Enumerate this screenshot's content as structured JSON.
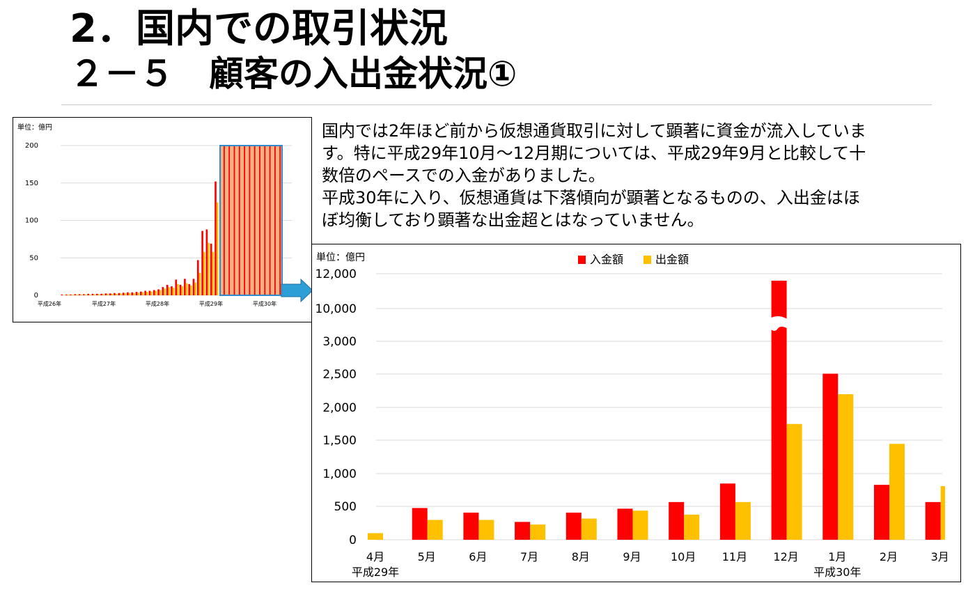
{
  "page": {
    "title_main": "2．国内での取引状況",
    "title_sub": "２－５　顧客の入出金状況①",
    "description": "国内では2年ほど前から仮想通貨取引に対して顕著に資金が流入していま\nす。特に平成29年10月～12月期については、平成29年9月と比較して十\n数倍のペースでの入金がありました。\n平成30年に入り、仮想通貨は下落傾向が顕著となるものの、入出金はほ\nぼ均衡しており顕著な出金超とはなっていません。"
  },
  "colors": {
    "deposit": "#ff0000",
    "withdrawal": "#ffc000",
    "highlight_border": "#2f8dcf",
    "highlight_fill": "#f4b183",
    "arrow": "#2e9fd6",
    "grid": "#d9d9d9"
  },
  "chart_data": [
    {
      "type": "bar",
      "unit_label": "単位：億円",
      "ylim": [
        0,
        200
      ],
      "yticks": [
        0,
        50,
        100,
        150,
        200
      ],
      "period_labels": [
        "平成26年",
        "平成27年",
        "平成28年",
        "平成29年",
        "平成30年"
      ],
      "series": [
        {
          "name": "入金額",
          "values": [
            1,
            1,
            1,
            1.5,
            1.5,
            1.5,
            2,
            2,
            2,
            2,
            2.5,
            2.5,
            3,
            3,
            3.5,
            4,
            4,
            4.5,
            5,
            6,
            6,
            7,
            8,
            11,
            14,
            12,
            21,
            14,
            22,
            15,
            22,
            47,
            86,
            88,
            69,
            152
          ]
        },
        {
          "name": "出金額",
          "values": [
            0.5,
            1,
            1,
            1,
            1,
            1,
            1,
            1.5,
            1.5,
            1.5,
            2,
            2,
            2,
            2.5,
            3,
            3,
            3,
            3.5,
            4,
            4.5,
            5,
            6,
            7,
            9,
            11,
            10,
            15,
            12,
            16,
            13,
            17,
            30,
            58,
            70,
            58,
            124
          ]
        }
      ],
      "highlight_region": "平成29年10月以降"
    },
    {
      "type": "bar",
      "unit_label": "単位：億円",
      "categories": [
        "4月",
        "5月",
        "6月",
        "7月",
        "8月",
        "9月",
        "10月",
        "11月",
        "12月",
        "1月",
        "2月",
        "3月"
      ],
      "year_labels": [
        {
          "label": "平成29年",
          "category": "4月"
        },
        {
          "label": "平成30年",
          "category": "1月"
        }
      ],
      "yticks": [
        "0",
        "500",
        "1,000",
        "1,500",
        "2,000",
        "2,500",
        "3,000",
        "10,000",
        "12,000"
      ],
      "axis_break": "3,000～10,000",
      "series": [
        {
          "name": "入金額",
          "values": [
            0,
            480,
            410,
            270,
            410,
            470,
            570,
            850,
            11600,
            2510,
            830,
            570
          ]
        },
        {
          "name": "出金額",
          "values": [
            100,
            300,
            300,
            230,
            320,
            440,
            380,
            570,
            1750,
            2200,
            1450,
            810
          ]
        }
      ]
    }
  ]
}
